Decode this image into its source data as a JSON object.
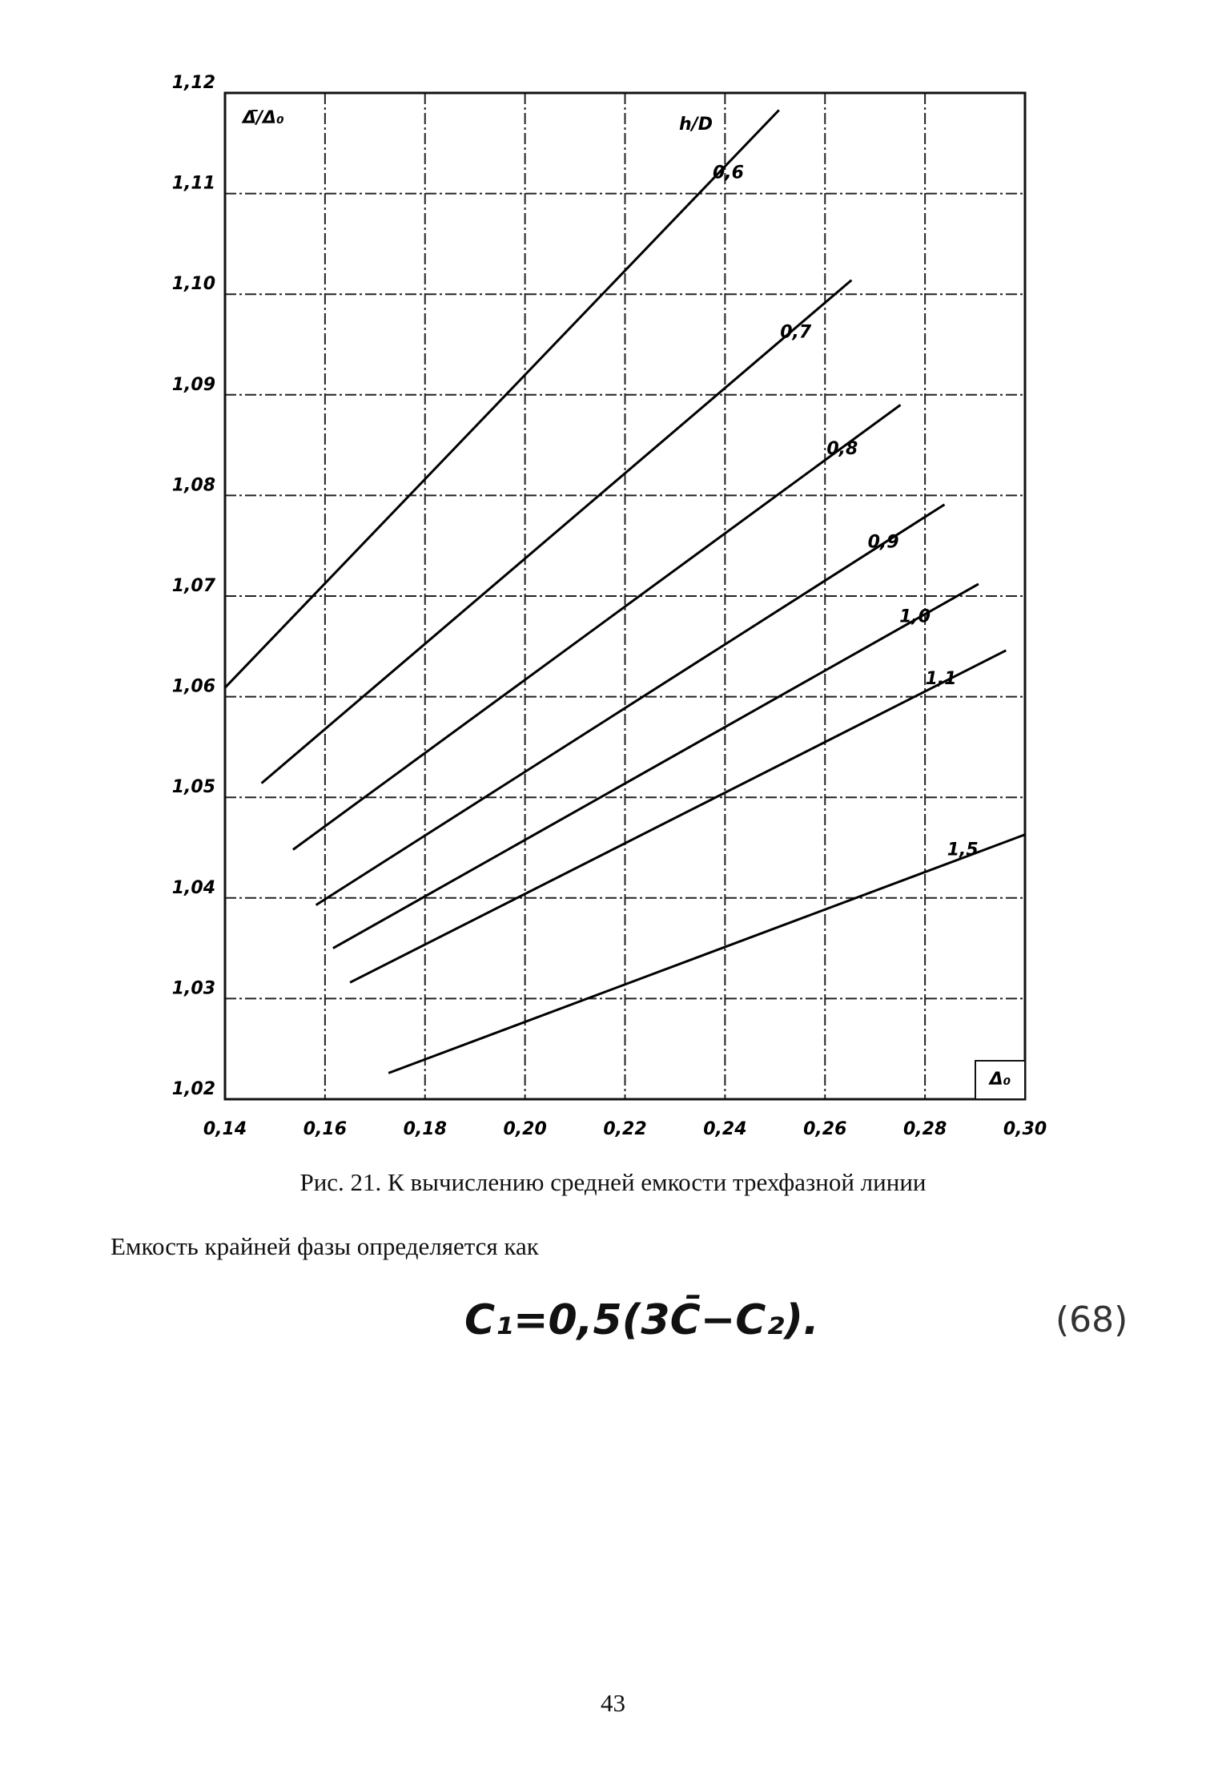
{
  "chart_data": {
    "type": "line",
    "y_label": "Δ̄/Δ₀",
    "x_label": "Δ₀",
    "legend_title": "h/D",
    "xlim": [
      0.14,
      0.3
    ],
    "ylim": [
      1.02,
      1.12
    ],
    "xticks": [
      {
        "value": 0.14,
        "label": "0,14"
      },
      {
        "value": 0.16,
        "label": "0,16"
      },
      {
        "value": 0.18,
        "label": "0,18"
      },
      {
        "value": 0.2,
        "label": "0,20"
      },
      {
        "value": 0.22,
        "label": "0,22"
      },
      {
        "value": 0.24,
        "label": "0,24"
      },
      {
        "value": 0.26,
        "label": "0,26"
      },
      {
        "value": 0.28,
        "label": "0,28"
      },
      {
        "value": 0.3,
        "label": "0,30"
      }
    ],
    "yticks": [
      {
        "value": 1.02,
        "label": "1,02"
      },
      {
        "value": 1.03,
        "label": "1,03"
      },
      {
        "value": 1.04,
        "label": "1,04"
      },
      {
        "value": 1.05,
        "label": "1,05"
      },
      {
        "value": 1.06,
        "label": "1,06"
      },
      {
        "value": 1.07,
        "label": "1,07"
      },
      {
        "value": 1.08,
        "label": "1,08"
      },
      {
        "value": 1.09,
        "label": "1,09"
      },
      {
        "value": 1.1,
        "label": "1,10"
      },
      {
        "value": 1.11,
        "label": "1,11"
      },
      {
        "value": 1.12,
        "label": "1,12"
      }
    ],
    "grid": true,
    "series": [
      {
        "name": "0,6",
        "color": "#000000",
        "x": [
          0.14,
          0.2508
        ],
        "values": [
          1.0609,
          1.1183
        ]
      },
      {
        "name": "0,7",
        "color": "#000000",
        "x": [
          0.1473,
          0.2653
        ],
        "values": [
          1.0514,
          1.1014
        ]
      },
      {
        "name": "0,8",
        "color": "#000000",
        "x": [
          0.1536,
          0.2751
        ],
        "values": [
          1.0448,
          1.089
        ]
      },
      {
        "name": "0,9",
        "color": "#000000",
        "x": [
          0.1582,
          0.2839
        ],
        "values": [
          1.0393,
          1.0791
        ]
      },
      {
        "name": "1,0",
        "color": "#000000",
        "x": [
          0.1616,
          0.2907
        ],
        "values": [
          1.035,
          1.0712
        ]
      },
      {
        "name": "1,1",
        "color": "#000000",
        "x": [
          0.165,
          0.2962
        ],
        "values": [
          1.0316,
          1.0646
        ]
      },
      {
        "name": "1,5",
        "color": "#000000",
        "x": [
          0.1727,
          0.3
        ],
        "values": [
          1.0226,
          1.0463
        ]
      }
    ]
  },
  "caption": "Рис. 21. К вычислению средней емкости трехфазной линии",
  "paragraph": "Емкость крайней фазы определяется как",
  "formula": "C₁=0,5(3C̄−C₂).",
  "equation_number": "(68)",
  "page_number": "43"
}
